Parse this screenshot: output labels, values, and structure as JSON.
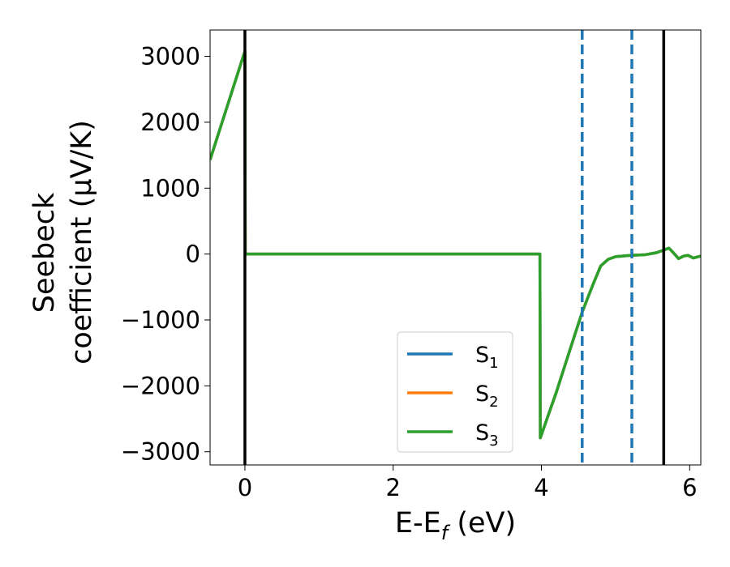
{
  "chart_data": {
    "type": "line",
    "title": "",
    "xlabel": "E-E",
    "xlabel_sub": "f",
    "xlabel_unit": " (eV)",
    "ylabel_line1": "Seebeck",
    "ylabel_line2": "coefficient  (μV/K)",
    "xlim": [
      -0.47,
      6.15
    ],
    "ylim": [
      -3200,
      3400
    ],
    "x_ticks": [
      0,
      2,
      4,
      6
    ],
    "x_tick_labels": [
      "0",
      "2",
      "4",
      "6"
    ],
    "y_ticks": [
      -3000,
      -2000,
      -1000,
      0,
      1000,
      2000,
      3000
    ],
    "y_tick_labels": [
      "−3000",
      "−2000",
      "−1000",
      "0",
      "1000",
      "2000",
      "3000"
    ],
    "grid": false,
    "legend_position": "lower-center",
    "series": [
      {
        "name": "S",
        "sub": "1",
        "color": "#1f77b4",
        "x": [
          -0.47,
          0.0,
          0.005,
          3.98,
          3.985,
          4.2,
          4.4,
          4.55,
          4.7,
          4.8,
          4.9,
          5.0,
          5.2,
          5.4,
          5.55,
          5.65,
          5.72,
          5.78,
          5.85,
          5.92,
          5.98,
          6.05,
          6.15
        ],
        "y": [
          1430,
          3080,
          0,
          0,
          -2790,
          -2100,
          -1400,
          -880,
          -450,
          -180,
          -80,
          -40,
          -20,
          -10,
          20,
          60,
          90,
          20,
          -70,
          -30,
          -20,
          -60,
          -30
        ]
      },
      {
        "name": "S",
        "sub": "2",
        "color": "#ff7f0e",
        "x": [
          -0.47,
          0.0,
          0.005,
          3.98,
          3.985,
          4.2,
          4.4,
          4.55,
          4.7,
          4.8,
          4.9,
          5.0,
          5.2,
          5.4,
          5.55,
          5.65,
          5.72,
          5.78,
          5.85,
          5.92,
          5.98,
          6.05,
          6.15
        ],
        "y": [
          1430,
          3080,
          0,
          0,
          -2790,
          -2100,
          -1400,
          -880,
          -450,
          -180,
          -80,
          -40,
          -20,
          -10,
          20,
          60,
          90,
          20,
          -70,
          -30,
          -20,
          -60,
          -30
        ]
      },
      {
        "name": "S",
        "sub": "3",
        "color": "#2ca02c",
        "x": [
          -0.47,
          0.0,
          0.005,
          3.98,
          3.985,
          4.2,
          4.4,
          4.55,
          4.7,
          4.8,
          4.9,
          5.0,
          5.2,
          5.4,
          5.55,
          5.65,
          5.72,
          5.78,
          5.85,
          5.92,
          5.98,
          6.05,
          6.15
        ],
        "y": [
          1430,
          3080,
          0,
          0,
          -2790,
          -2100,
          -1400,
          -880,
          -450,
          -180,
          -80,
          -40,
          -20,
          -10,
          20,
          60,
          90,
          20,
          -70,
          -30,
          -20,
          -60,
          -30
        ]
      }
    ],
    "vlines_solid": [
      0.0,
      5.65
    ],
    "vlines_dashed": [
      4.55,
      5.22
    ],
    "vline_solid_color": "#000000",
    "vline_dashed_color": "#1f77b4"
  }
}
